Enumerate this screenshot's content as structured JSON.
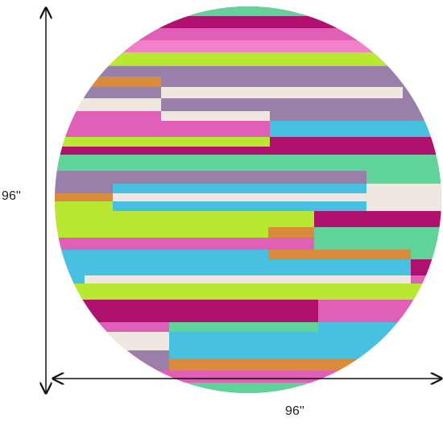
{
  "dimensions": {
    "height_label": "96''",
    "width_label": "96''"
  }
}
